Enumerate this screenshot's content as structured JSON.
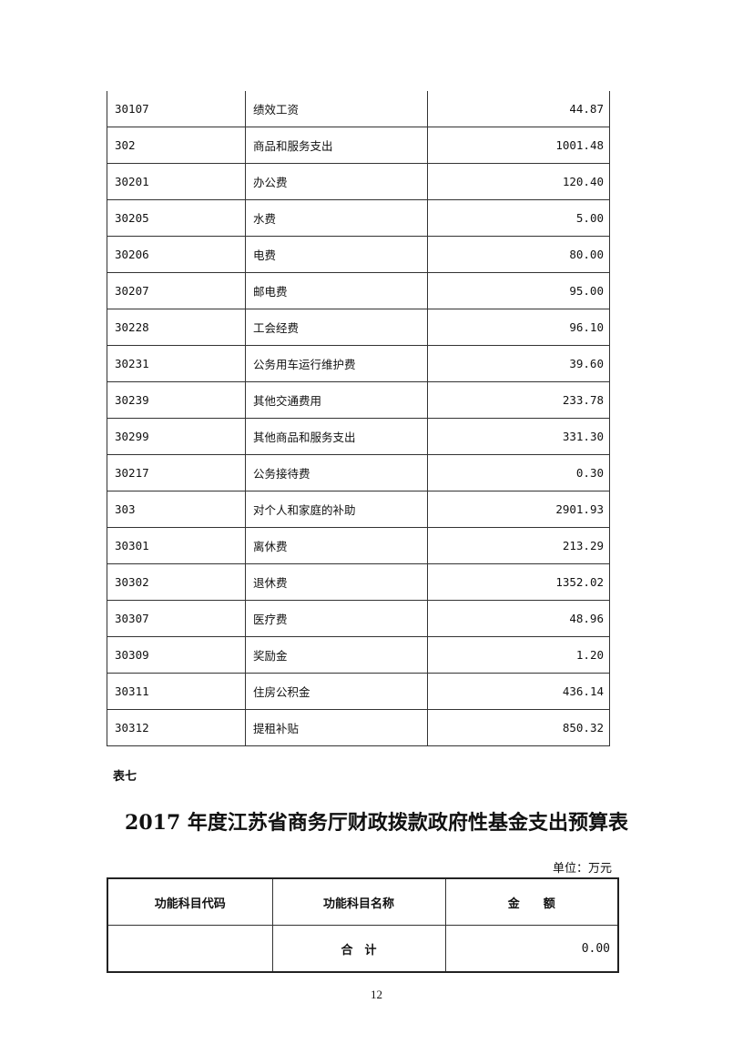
{
  "budget_rows": [
    {
      "code": "30107",
      "name": "绩效工资",
      "amount": "44.87"
    },
    {
      "code": "302",
      "name": "商品和服务支出",
      "amount": "1001.48"
    },
    {
      "code": "30201",
      "name": "办公费",
      "amount": "120.40"
    },
    {
      "code": "30205",
      "name": "水费",
      "amount": "5.00"
    },
    {
      "code": "30206",
      "name": "电费",
      "amount": "80.00"
    },
    {
      "code": "30207",
      "name": "邮电费",
      "amount": "95.00"
    },
    {
      "code": "30228",
      "name": "工会经费",
      "amount": "96.10"
    },
    {
      "code": "30231",
      "name": "公务用车运行维护费",
      "amount": "39.60"
    },
    {
      "code": "30239",
      "name": "其他交通费用",
      "amount": "233.78"
    },
    {
      "code": "30299",
      "name": "其他商品和服务支出",
      "amount": "331.30"
    },
    {
      "code": "30217",
      "name": "公务接待费",
      "amount": "0.30"
    },
    {
      "code": "303",
      "name": "对个人和家庭的补助",
      "amount": "2901.93"
    },
    {
      "code": "30301",
      "name": "离休费",
      "amount": "213.29"
    },
    {
      "code": "30302",
      "name": "退休费",
      "amount": "1352.02"
    },
    {
      "code": "30307",
      "name": "医疗费",
      "amount": "48.96"
    },
    {
      "code": "30309",
      "name": "奖励金",
      "amount": "1.20"
    },
    {
      "code": "30311",
      "name": "住房公积金",
      "amount": "436.14"
    },
    {
      "code": "30312",
      "name": "提租补贴",
      "amount": "850.32"
    }
  ],
  "table7": {
    "label": "表七",
    "title": "2017 年度江苏省商务厅财政拨款政府性基金支出预算表",
    "unit": "单位：万元",
    "headers": [
      "功能科目代码",
      "功能科目名称",
      "金　　额"
    ],
    "total_row": {
      "code": "",
      "name": "合　计",
      "amount": "0.00"
    }
  },
  "page_number": "12"
}
